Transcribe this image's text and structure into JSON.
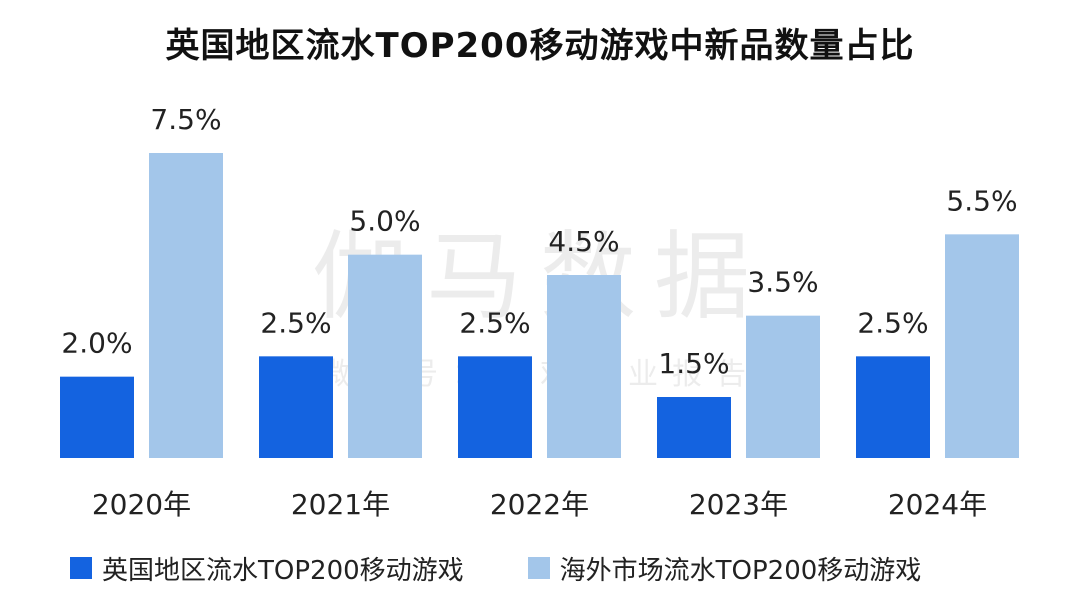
{
  "chart_data": {
    "type": "bar",
    "title": "英国地区流水TOP200移动游戏中新品数量占比",
    "categories": [
      "2020年",
      "2021年",
      "2022年",
      "2023年",
      "2024年"
    ],
    "series": [
      {
        "name": "英国地区流水TOP200移动游戏",
        "color": "#1463e0",
        "values": [
          2.0,
          2.5,
          2.5,
          1.5,
          2.5
        ],
        "labels": [
          "2.0%",
          "2.5%",
          "2.5%",
          "1.5%",
          "2.5%"
        ]
      },
      {
        "name": "海外市场流水TOP200移动游戏",
        "color": "#a3c6ea",
        "values": [
          7.5,
          5.0,
          4.5,
          3.5,
          5.5
        ],
        "labels": [
          "7.5%",
          "5.0%",
          "4.5%",
          "3.5%",
          "5.5%"
        ]
      }
    ],
    "xlabel": "",
    "ylabel": "",
    "ylim": [
      0,
      8.5
    ],
    "grid": false,
    "legend": "bottom-left"
  },
  "watermark": {
    "main": "伽马数据",
    "sub": "微信号：游戏产业报告"
  }
}
